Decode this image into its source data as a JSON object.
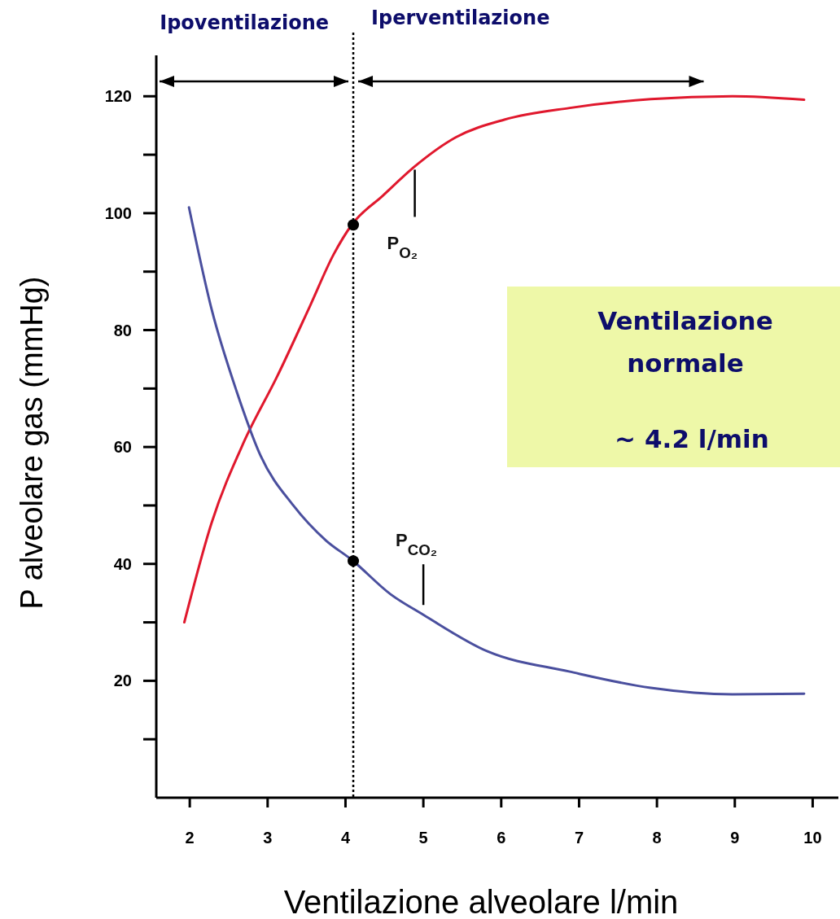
{
  "chart_data": {
    "type": "line",
    "xlabel": "Ventilazione alveolare l/min",
    "ylabel": "P alveolare gas (mmHg)",
    "xlim": [
      1.57,
      10.33
    ],
    "ylim": [
      0,
      127
    ],
    "xticks": [
      2,
      3,
      4,
      5,
      6,
      7,
      8,
      9,
      10
    ],
    "yticks": [
      {
        "value": 10,
        "label": null
      },
      20,
      {
        "value": 30,
        "label": null
      },
      40,
      {
        "value": 50,
        "label": null
      },
      60,
      {
        "value": 70,
        "label": null
      },
      80,
      {
        "value": 90,
        "label": null
      },
      100,
      {
        "value": 110,
        "label": null
      },
      120
    ],
    "grid": false,
    "marker": "none",
    "line_style": "solid",
    "series": [
      {
        "name": "P$_{O₂}$",
        "color": "#e0182d",
        "x": [
          1.93,
          2.28,
          2.7,
          3.12,
          3.54,
          3.85,
          4.08,
          4.48,
          4.89,
          5.42,
          6.04,
          6.88,
          7.92,
          8.97,
          9.89
        ],
        "values": [
          30,
          47,
          61,
          72,
          84,
          93,
          98,
          103,
          108,
          113,
          116,
          118,
          119.5,
          120,
          119.4
        ]
      },
      {
        "name": "P$_{CO₂}$",
        "color": "#4a4f9e",
        "x": [
          1.99,
          2.28,
          2.6,
          2.91,
          3.33,
          3.75,
          4.08,
          4.58,
          5,
          5.83,
          6.87,
          7.92,
          8.97,
          9.89
        ],
        "values": [
          101,
          83.6,
          69.6,
          58.5,
          50,
          44,
          40.7,
          34.8,
          31.3,
          25,
          21.6,
          18.8,
          17.7,
          17.8
        ]
      },
      {
        "type": "scatter",
        "marker": "circle",
        "color": "#000000",
        "x": [
          4.1,
          4.1
        ],
        "values": [
          98,
          40.5
        ]
      }
    ],
    "ref_lines": [
      {
        "axis": "x",
        "value": 4.1,
        "line_style": "dotted",
        "color": "#000000"
      }
    ],
    "annotations": [
      "Ipoventilazione",
      "Iperventilazione",
      "Ventilazione normale",
      "∼ 4.2 l/min"
    ]
  }
}
